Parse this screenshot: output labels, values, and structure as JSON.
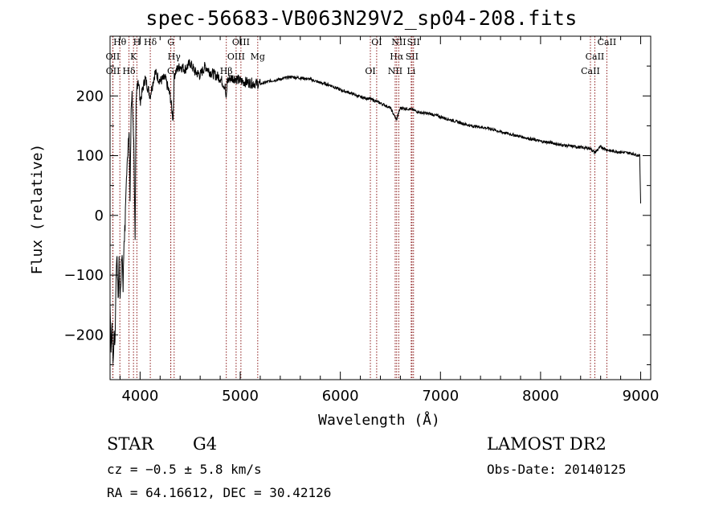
{
  "chart_data": {
    "type": "line",
    "title": "spec-56683-VB063N29V2_sp04-208.fits",
    "xlabel": "Wavelength (Å)",
    "ylabel": "Flux (relative)",
    "xlim": [
      3700,
      9100
    ],
    "ylim": [
      -275,
      300
    ],
    "xticks": [
      4000,
      5000,
      6000,
      7000,
      8000,
      9000
    ],
    "yticks": [
      -200,
      -100,
      0,
      100,
      200
    ],
    "grid": false,
    "series": [
      {
        "color": "#000000",
        "x": [
          3700,
          3710,
          3720,
          3730,
          3740,
          3750,
          3760,
          3770,
          3780,
          3790,
          3800,
          3810,
          3820,
          3830,
          3840,
          3850,
          3860,
          3870,
          3880,
          3890,
          3900,
          3910,
          3920,
          3930,
          3940,
          3950,
          3960,
          3970,
          3980,
          3990,
          4000,
          4050,
          4100,
          4150,
          4200,
          4250,
          4300,
          4330,
          4340,
          4350,
          4400,
          4450,
          4500,
          4550,
          4600,
          4650,
          4700,
          4750,
          4800,
          4850,
          4860,
          4870,
          4900,
          4950,
          5000,
          5100,
          5200,
          5300,
          5400,
          5500,
          5600,
          5700,
          5800,
          5900,
          6000,
          6100,
          6200,
          6300,
          6400,
          6500,
          6560,
          6600,
          6700,
          6800,
          6900,
          7000,
          7100,
          7200,
          7300,
          7400,
          7500,
          7600,
          7700,
          7800,
          7900,
          8000,
          8100,
          8200,
          8300,
          8400,
          8500,
          8540,
          8600,
          8660,
          8700,
          8800,
          8900,
          8990,
          9000
        ],
        "y": [
          -150,
          -220,
          -180,
          -250,
          -200,
          -210,
          -100,
          -60,
          -150,
          -80,
          -140,
          -100,
          -60,
          -120,
          -40,
          -20,
          50,
          80,
          120,
          150,
          20,
          180,
          200,
          160,
          100,
          -50,
          180,
          220,
          230,
          215,
          190,
          230,
          200,
          240,
          225,
          230,
          200,
          160,
          230,
          240,
          250,
          245,
          255,
          240,
          235,
          250,
          240,
          235,
          230,
          215,
          190,
          225,
          230,
          230,
          225,
          222,
          220,
          225,
          228,
          232,
          230,
          228,
          222,
          218,
          210,
          205,
          198,
          195,
          188,
          180,
          160,
          180,
          178,
          172,
          170,
          165,
          160,
          155,
          150,
          148,
          145,
          140,
          136,
          132,
          128,
          124,
          122,
          118,
          116,
          114,
          112,
          105,
          115,
          110,
          108,
          106,
          104,
          100,
          20
        ]
      }
    ],
    "lines": [
      {
        "label": "Hθ",
        "x": 3798
      },
      {
        "label": "OII",
        "x": 3727
      },
      {
        "label": "OII",
        "x": 3729
      },
      {
        "label": "H",
        "x": 3968
      },
      {
        "label": "K",
        "x": 3934
      },
      {
        "label": "Hδ",
        "x": 3889
      },
      {
        "label": "Hδ",
        "x": 4102
      },
      {
        "label": "Hγ",
        "x": 4340
      },
      {
        "label": "G",
        "x": 4305
      },
      {
        "label": "G",
        "x": 4307
      },
      {
        "label": "OIII",
        "x": 4959
      },
      {
        "label": "Hβ",
        "x": 4861
      },
      {
        "label": "OIII",
        "x": 5007
      },
      {
        "label": "Mg",
        "x": 5175
      },
      {
        "label": "OI",
        "x": 6300
      },
      {
        "label": "OI",
        "x": 6363
      },
      {
        "label": "Hα",
        "x": 6563
      },
      {
        "label": "NII",
        "x": 6548
      },
      {
        "label": "NII",
        "x": 6584
      },
      {
        "label": "SII",
        "x": 6716
      },
      {
        "label": "Li",
        "x": 6708
      },
      {
        "label": "SII",
        "x": 6731
      },
      {
        "label": "CaII",
        "x": 8542
      },
      {
        "label": "CaII",
        "x": 8498
      },
      {
        "label": "CaII",
        "x": 8662
      }
    ]
  },
  "info": {
    "class": "STAR",
    "subclass": "G4",
    "survey": "LAMOST DR2",
    "cz": "cz = −0.5 ± 5.8 km/s",
    "obs_date": "Obs-Date: 20140125",
    "radec": "RA =  64.16612, DEC =  30.42126"
  },
  "colors": {
    "spectrum": "#000000",
    "line_markers": "#8b1a1a",
    "axes": "#000000"
  }
}
